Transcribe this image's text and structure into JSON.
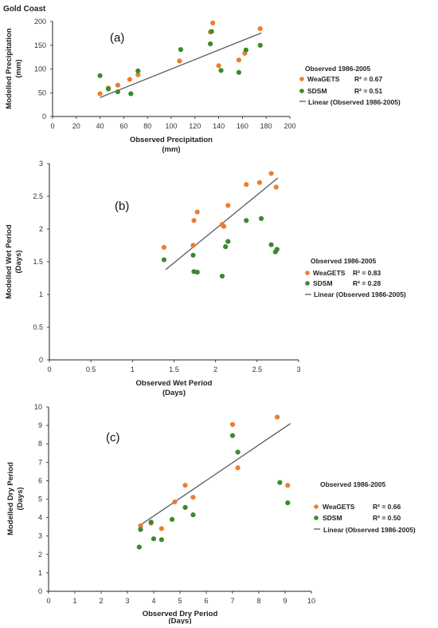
{
  "figure_title": "Gold Coast",
  "colors": {
    "weagets": "#ed7d31",
    "sdsm": "#3a8a2e",
    "trend": "#555a66",
    "axis": "#222222"
  },
  "chart_data": [
    {
      "type": "scatter",
      "panel_label": "(a)",
      "xlabel": "Observed Precipitation",
      "xunit": "(mm)",
      "ylabel": "Modelled Precipitation",
      "yunit": "(mm)",
      "xlim": [
        0,
        200
      ],
      "ylim": [
        0,
        200
      ],
      "xticks": [
        0,
        20,
        40,
        60,
        80,
        100,
        120,
        140,
        160,
        180,
        200
      ],
      "yticks": [
        0,
        50,
        100,
        150,
        200
      ],
      "legend_title": "Observed 1986-2005",
      "trend_label": "Linear (Observed 1986-2005)",
      "trend": [
        [
          40,
          40
        ],
        [
          176,
          176
        ]
      ],
      "series": [
        {
          "name": "WeaGETS",
          "r2": "R² = 0.67",
          "points": [
            [
              40,
              48
            ],
            [
              47,
              60
            ],
            [
              55,
              66
            ],
            [
              65,
              78
            ],
            [
              72,
              88
            ],
            [
              107,
              117
            ],
            [
              133,
              178
            ],
            [
              135,
              197
            ],
            [
              140,
              107
            ],
            [
              157,
              119
            ],
            [
              162,
              133
            ],
            [
              175,
              185
            ]
          ]
        },
        {
          "name": "SDSM",
          "r2": "R² = 0.51",
          "points": [
            [
              40,
              86
            ],
            [
              47,
              58
            ],
            [
              55,
              52
            ],
            [
              66,
              48
            ],
            [
              72,
              96
            ],
            [
              108,
              141
            ],
            [
              133,
              153
            ],
            [
              134,
              179
            ],
            [
              142,
              97
            ],
            [
              157,
              93
            ],
            [
              163,
              140
            ],
            [
              175,
              150
            ]
          ]
        }
      ]
    },
    {
      "type": "scatter",
      "panel_label": "(b)",
      "xlabel": "Observed Wet Period",
      "xunit": "(Days)",
      "ylabel": "Modelled Wet Period",
      "yunit": "(Days)",
      "xlim": [
        0,
        3
      ],
      "ylim": [
        0,
        3
      ],
      "xticks": [
        0,
        0.5,
        1,
        1.5,
        2,
        2.5,
        3
      ],
      "yticks": [
        0,
        0.5,
        1,
        1.5,
        2,
        2.5,
        3
      ],
      "legend_title": "Observed 1986-2005",
      "trend_label": "Linear (Observed 1986-2005)",
      "trend": [
        [
          1.4,
          1.38
        ],
        [
          2.75,
          2.78
        ]
      ],
      "series": [
        {
          "name": "WeaGETS",
          "r2": "R² = 0.83",
          "points": [
            [
              1.38,
              1.72
            ],
            [
              1.73,
              1.75
            ],
            [
              1.74,
              2.13
            ],
            [
              1.78,
              2.26
            ],
            [
              2.08,
              2.07
            ],
            [
              2.1,
              2.04
            ],
            [
              2.15,
              2.36
            ],
            [
              2.37,
              2.68
            ],
            [
              2.53,
              2.71
            ],
            [
              2.67,
              2.85
            ],
            [
              2.73,
              2.64
            ]
          ]
        },
        {
          "name": "SDSM",
          "r2": "R² = 0.28",
          "points": [
            [
              1.38,
              1.53
            ],
            [
              1.73,
              1.6
            ],
            [
              1.74,
              1.35
            ],
            [
              1.78,
              1.34
            ],
            [
              2.08,
              1.28
            ],
            [
              2.12,
              1.73
            ],
            [
              2.15,
              1.81
            ],
            [
              2.37,
              2.13
            ],
            [
              2.55,
              2.16
            ],
            [
              2.67,
              1.76
            ],
            [
              2.72,
              1.65
            ],
            [
              2.74,
              1.69
            ]
          ]
        }
      ]
    },
    {
      "type": "scatter",
      "panel_label": "(c)",
      "xlabel": "Observed Dry Period",
      "xunit": "(Days)",
      "ylabel": "Modelled Dry Period",
      "yunit": "(Days)",
      "xlim": [
        0,
        10
      ],
      "ylim": [
        0,
        10
      ],
      "xticks": [
        0,
        1,
        2,
        3,
        4,
        5,
        6,
        7,
        8,
        9,
        10
      ],
      "yticks": [
        0,
        1,
        2,
        3,
        4,
        5,
        6,
        7,
        8,
        9,
        10
      ],
      "legend_title": "Observed 1986-2005",
      "trend_label": "Linear (Observed 1986-2005)",
      "trend": [
        [
          3.5,
          3.6
        ],
        [
          9.2,
          9.1
        ]
      ],
      "series": [
        {
          "name": "WeaGETS",
          "r2": "R² = 0.66",
          "points": [
            [
              3.5,
              3.55
            ],
            [
              3.9,
              3.7
            ],
            [
              4.3,
              3.4
            ],
            [
              4.8,
              4.85
            ],
            [
              5.2,
              5.75
            ],
            [
              5.5,
              5.1
            ],
            [
              7.0,
              9.05
            ],
            [
              7.2,
              6.7
            ],
            [
              8.7,
              9.45
            ],
            [
              9.1,
              5.75
            ]
          ]
        },
        {
          "name": "SDSM",
          "r2": "R² = 0.50",
          "points": [
            [
              3.45,
              2.4
            ],
            [
              3.5,
              3.35
            ],
            [
              3.9,
              3.75
            ],
            [
              4.0,
              2.85
            ],
            [
              4.3,
              2.8
            ],
            [
              4.7,
              3.9
            ],
            [
              5.2,
              4.55
            ],
            [
              5.5,
              4.15
            ],
            [
              7.0,
              8.45
            ],
            [
              7.2,
              7.55
            ],
            [
              8.8,
              5.9
            ],
            [
              9.1,
              4.8
            ]
          ]
        }
      ]
    }
  ]
}
